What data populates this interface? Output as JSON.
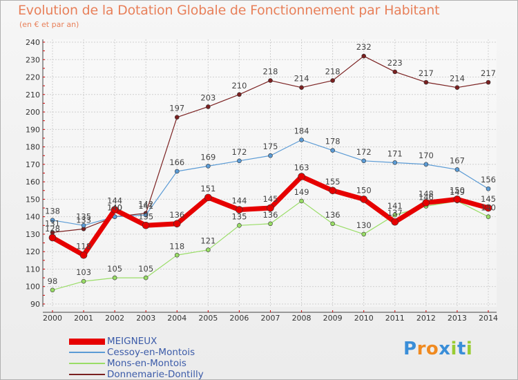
{
  "title": "Evolution de la Dotation Globale de Fonctionnement par Habitant",
  "subtitle": "(en € et par an)",
  "logo_text": "Proxiti",
  "chart_data": {
    "type": "line",
    "title": "Evolution de la Dotation Globale de Fonctionnement par Habitant",
    "ylabel": "(en € et par an)",
    "xlabel": "",
    "x": [
      "2000",
      "2001",
      "2002",
      "2003",
      "2004",
      "2005",
      "2006",
      "2007",
      "2008",
      "2009",
      "2010",
      "2011",
      "2012",
      "2013",
      "2014"
    ],
    "ylim": [
      90,
      240
    ],
    "yticks": [
      90,
      100,
      110,
      120,
      130,
      140,
      150,
      160,
      170,
      180,
      190,
      200,
      210,
      220,
      230,
      240
    ],
    "grid": true,
    "legend_position": "bottom-left",
    "series": [
      {
        "name": "MEIGNEUX",
        "color": "#e60000",
        "values": [
          128,
          118,
          144,
          135,
          136,
          151,
          144,
          145,
          163,
          155,
          150,
          137,
          148,
          150,
          145
        ]
      },
      {
        "name": "Cessoy-en-Montois",
        "color": "#5b9bd5",
        "values": [
          138,
          135,
          140,
          141,
          166,
          169,
          172,
          175,
          184,
          178,
          172,
          171,
          170,
          167,
          156
        ]
      },
      {
        "name": "Mons-en-Montois",
        "color": "#99dd66",
        "values": [
          98,
          103,
          105,
          105,
          118,
          121,
          135,
          136,
          149,
          136,
          130,
          141,
          146,
          149,
          140
        ]
      },
      {
        "name": "Donnemarie-Dontilly",
        "color": "#7a2020",
        "values": [
          131,
          133,
          140,
          142,
          197,
          203,
          210,
          218,
          214,
          218,
          232,
          223,
          217,
          214,
          217
        ]
      }
    ]
  }
}
